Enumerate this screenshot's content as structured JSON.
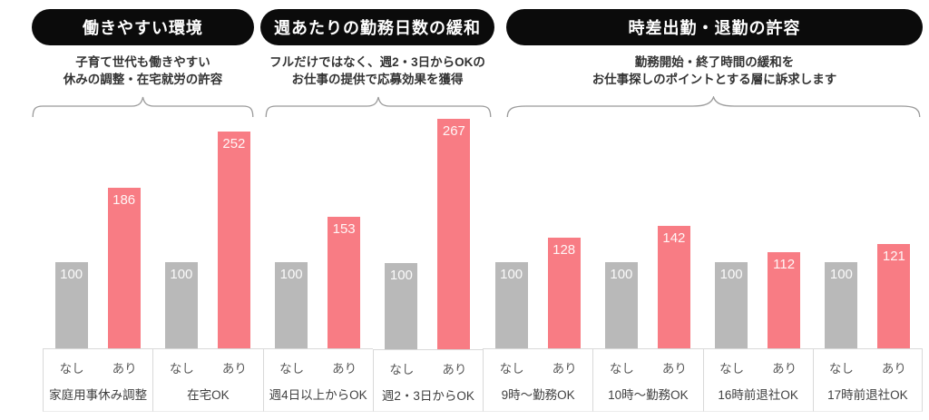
{
  "sections": [
    {
      "title": "働きやすい環境",
      "subtitle_lines": [
        "子育て世代も働きやすい",
        "休みの調整・在宅就労の許容"
      ]
    },
    {
      "title": "週あたりの勤務日数の緩和",
      "subtitle_lines": [
        "フルだけではなく、週2・3日からOKの",
        "お仕事の提供で応募効果を獲得"
      ]
    },
    {
      "title": "時差出勤・退勤の許容",
      "subtitle_lines": [
        "勤務開始・終了時間の緩和を",
        "お仕事探しのポイントとする層に訴求します"
      ]
    }
  ],
  "chart_data": {
    "type": "bar",
    "categories": [
      "家庭用事休み調整",
      "在宅OK",
      "週4日以上からOK",
      "週2・3日からOK",
      "9時〜勤務OK",
      "10時〜勤務OK",
      "16時前退社OK",
      "17時前退社OK"
    ],
    "category_section_index": [
      0,
      0,
      1,
      1,
      2,
      2,
      2,
      2
    ],
    "series": [
      {
        "name": "なし",
        "values": [
          100,
          100,
          100,
          100,
          100,
          100,
          100,
          100
        ],
        "color": "#b9b9b9"
      },
      {
        "name": "あり",
        "values": [
          186,
          252,
          153,
          267,
          128,
          142,
          112,
          121
        ],
        "color": "#f87c84"
      }
    ],
    "value_labels_shown": true,
    "value_label_color": "#ffffff",
    "ylim": [
      0,
      270
    ],
    "grid": false,
    "legend_position": "below-each-bar",
    "colors": {
      "baseline_bar": "#b9b9b9",
      "highlight_bar": "#f87c84",
      "header_pill": "#0b0b0b",
      "brace": "#9b9b9b",
      "cell_border": "#d9d9d9"
    }
  }
}
